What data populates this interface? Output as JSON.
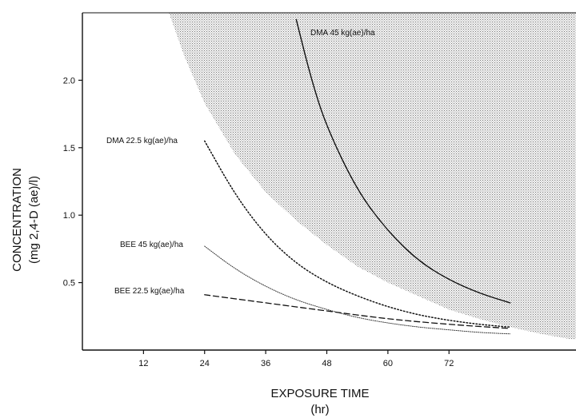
{
  "chart_data": {
    "type": "line",
    "title": "",
    "xlabel": "EXPOSURE TIME",
    "xlabel_unit": "(hr)",
    "ylabel": "CONCENTRATION",
    "ylabel_unit": "(mg 2,4-D (ae)/l)",
    "xlim": [
      0,
      96
    ],
    "ylim": [
      0,
      2.5
    ],
    "x_ticks": [
      12,
      24,
      36,
      48,
      60,
      72
    ],
    "x_tick_labels": [
      "12",
      "24",
      "36",
      "48",
      "60",
      "72"
    ],
    "y_ticks": [
      0.5,
      1.0,
      1.5,
      2.0
    ],
    "y_tick_labels": [
      "0.5",
      "1.0",
      "1.5",
      "2.0"
    ],
    "grid": false,
    "legend": "none",
    "shaded_region": {
      "description_pattern": "stippled",
      "boundary": [
        {
          "x": 17,
          "y": 2.5
        },
        {
          "x": 20,
          "y": 2.18
        },
        {
          "x": 24,
          "y": 1.83
        },
        {
          "x": 30,
          "y": 1.45
        },
        {
          "x": 36,
          "y": 1.17
        },
        {
          "x": 42,
          "y": 0.96
        },
        {
          "x": 48,
          "y": 0.78
        },
        {
          "x": 54,
          "y": 0.62
        },
        {
          "x": 60,
          "y": 0.5
        },
        {
          "x": 66,
          "y": 0.4
        },
        {
          "x": 72,
          "y": 0.3
        },
        {
          "x": 78,
          "y": 0.23
        },
        {
          "x": 84,
          "y": 0.17
        },
        {
          "x": 90,
          "y": 0.12
        },
        {
          "x": 96,
          "y": 0.08
        }
      ]
    },
    "series": [
      {
        "name": "DMA 45 kg(ae)/ha",
        "style": "solid",
        "points": [
          {
            "x": 42,
            "y": 2.45
          },
          {
            "x": 45,
            "y": 2.0
          },
          {
            "x": 48,
            "y": 1.65
          },
          {
            "x": 54,
            "y": 1.18
          },
          {
            "x": 60,
            "y": 0.88
          },
          {
            "x": 66,
            "y": 0.66
          },
          {
            "x": 72,
            "y": 0.52
          },
          {
            "x": 78,
            "y": 0.42
          },
          {
            "x": 84,
            "y": 0.35
          }
        ]
      },
      {
        "name": "DMA 22.5 kg(ae)/ha",
        "style": "dotted",
        "points": [
          {
            "x": 24,
            "y": 1.55
          },
          {
            "x": 30,
            "y": 1.15
          },
          {
            "x": 36,
            "y": 0.85
          },
          {
            "x": 42,
            "y": 0.64
          },
          {
            "x": 48,
            "y": 0.5
          },
          {
            "x": 54,
            "y": 0.4
          },
          {
            "x": 60,
            "y": 0.32
          },
          {
            "x": 66,
            "y": 0.26
          },
          {
            "x": 72,
            "y": 0.22
          },
          {
            "x": 78,
            "y": 0.19
          },
          {
            "x": 84,
            "y": 0.17
          }
        ]
      },
      {
        "name": "BEE 45 kg(ae)/ha",
        "style": "fine-dotted",
        "points": [
          {
            "x": 24,
            "y": 0.77
          },
          {
            "x": 30,
            "y": 0.6
          },
          {
            "x": 36,
            "y": 0.47
          },
          {
            "x": 42,
            "y": 0.37
          },
          {
            "x": 48,
            "y": 0.3
          },
          {
            "x": 54,
            "y": 0.24
          },
          {
            "x": 60,
            "y": 0.2
          },
          {
            "x": 66,
            "y": 0.17
          },
          {
            "x": 72,
            "y": 0.15
          },
          {
            "x": 78,
            "y": 0.13
          },
          {
            "x": 84,
            "y": 0.12
          }
        ]
      },
      {
        "name": "BEE 22.5 kg(ae)/ha",
        "style": "dashed",
        "points": [
          {
            "x": 24,
            "y": 0.41
          },
          {
            "x": 36,
            "y": 0.35
          },
          {
            "x": 48,
            "y": 0.29
          },
          {
            "x": 60,
            "y": 0.23
          },
          {
            "x": 72,
            "y": 0.19
          },
          {
            "x": 84,
            "y": 0.16
          }
        ]
      }
    ]
  }
}
